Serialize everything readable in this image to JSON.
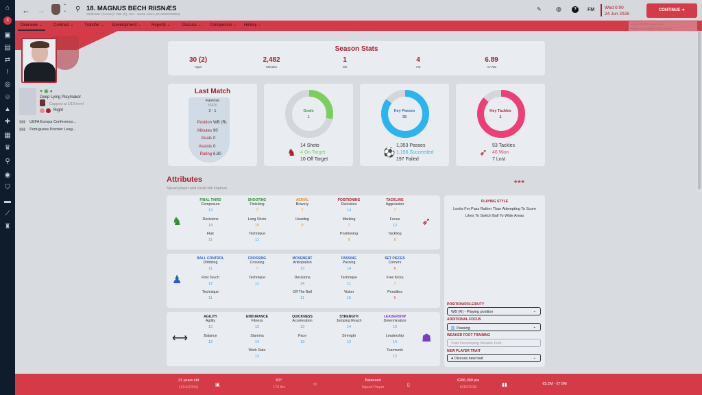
{
  "header": {
    "title": "18. MAGNUS BECH RIISNÆS",
    "subtitle": "Midfielder (Center) / WB (R), DM - Santa Clara (ID:2000029953)",
    "date_line1": "Wed 0:00",
    "date_line2": "24 Jun 2026",
    "continue_label": "CONTINUE",
    "fm_label": "FM",
    "inbox_count": "3",
    "advice_title": "NEW ADVICE AVAILABLE",
    "advice_text": "Player Progression Observations"
  },
  "nav": {
    "tabs": [
      "Overview",
      "Contract",
      "Transfer",
      "Development",
      "Reports",
      "Discuss",
      "Comparison",
      "History"
    ]
  },
  "profile": {
    "role": "Deep Lying Playmaker",
    "international": "Capped at U19 level",
    "foot": "Right",
    "competitions": [
      "UEFA Europa Conference...",
      "Portuguese Premier Leag..."
    ]
  },
  "season_stats": {
    "title": "Season Stats",
    "items": [
      {
        "value": "30 (2)",
        "label": "Apps"
      },
      {
        "value": "2,482",
        "label": "Minutes"
      },
      {
        "value": "1",
        "label": "Gls"
      },
      {
        "value": "4",
        "label": "Ast"
      },
      {
        "value": "6.89",
        "label": "Av Rat"
      }
    ]
  },
  "last_match": {
    "title": "Last Match",
    "opponent": "Farense",
    "date": "5/9/26",
    "score": "2 - 1",
    "rows": [
      {
        "k": "Position",
        "v": "WB (R)"
      },
      {
        "k": "Minutes",
        "v": "90"
      },
      {
        "k": "Goals",
        "v": "0"
      },
      {
        "k": "Assists",
        "v": "0"
      },
      {
        "k": "Rating",
        "v": "6.80"
      }
    ]
  },
  "donuts": [
    {
      "label": "Goals",
      "value": "1",
      "fraction": 0.286,
      "color": "#7ccf5e",
      "text_color": "#3a9a3a",
      "lines": [
        {
          "n": "14",
          "t": "Shots"
        },
        {
          "n": "4",
          "t": "On Target"
        },
        {
          "n": "10",
          "t": "Off Target"
        }
      ]
    },
    {
      "label": "Key Passes",
      "value": "36",
      "fraction": 0.854,
      "color": "#2bb5f0",
      "text_color": "#2a6acc",
      "lines": [
        {
          "n": "1,353",
          "t": "Passes"
        },
        {
          "n": "1,156",
          "t": "Succeeded"
        },
        {
          "n": "197",
          "t": "Failed"
        }
      ]
    },
    {
      "label": "Key Tackles",
      "value": "1",
      "fraction": 0.868,
      "color": "#ec3f78",
      "text_color": "#b0202e",
      "lines": [
        {
          "n": "53",
          "t": "Tackles"
        },
        {
          "n": "46",
          "t": "Won"
        },
        {
          "n": "7",
          "t": "Lost"
        }
      ]
    }
  ],
  "attributes": {
    "title": "Attributes",
    "subtitle": "Squad player and could still improve.",
    "stars": 3,
    "panels": [
      {
        "groups": [
          {
            "title": "FINAL THIRD",
            "color": "#2e8a2e",
            "items": [
              [
                "Composure",
                "13"
              ],
              [
                "Decisions",
                "14"
              ],
              [
                "Flair",
                "11"
              ]
            ]
          },
          {
            "title": "SHOOTING",
            "color": "#2e8a2e",
            "items": [
              [
                "Finishing",
                "7"
              ],
              [
                "Long Shots",
                "10"
              ],
              [
                "Technique",
                "11"
              ]
            ]
          },
          {
            "title": "AERIAL",
            "color": "#f08a24",
            "items": [
              [
                "Bravery",
                "7"
              ],
              [
                "Heading",
                "9"
              ]
            ]
          },
          {
            "title": "POSITIONING",
            "color": "#a51c2a",
            "items": [
              [
                "Decisions",
                "14"
              ],
              [
                "Marking",
                "7"
              ],
              [
                "Positioning",
                "9"
              ]
            ]
          },
          {
            "title": "TACKLING",
            "color": "#a51c2a",
            "items": [
              [
                "Aggression",
                "7"
              ],
              [
                "Focus",
                "12"
              ],
              [
                "Tackling",
                "8"
              ]
            ]
          }
        ]
      },
      {
        "groups": [
          {
            "title": "BALL CONTROL",
            "color": "#2a5cc4",
            "items": [
              [
                "Dribbling",
                "11"
              ],
              [
                "First Touch",
                "12"
              ],
              [
                "Technique",
                "11"
              ]
            ]
          },
          {
            "title": "CROSSING",
            "color": "#2a5cc4",
            "items": [
              [
                "Crossing",
                "7"
              ],
              [
                "Technique",
                "11"
              ]
            ]
          },
          {
            "title": "MOVEMENT",
            "color": "#2a5cc4",
            "items": [
              [
                "Anticipation",
                "13"
              ],
              [
                "Decisions",
                "14"
              ],
              [
                "Off The Ball",
                "11"
              ]
            ]
          },
          {
            "title": "PASSING",
            "color": "#2a5cc4",
            "items": [
              [
                "Passing",
                "14"
              ],
              [
                "Technique",
                "11"
              ],
              [
                "Vision",
                "15"
              ]
            ]
          },
          {
            "title": "SET PIECES",
            "color": "#2a5cc4",
            "items": [
              [
                "Corners",
                "6"
              ],
              [
                "Free Kicks",
                "7"
              ],
              [
                "Penalties",
                "5"
              ]
            ]
          }
        ]
      },
      {
        "groups": [
          {
            "title": "AGILITY",
            "color": "#1a1f2a",
            "items": [
              [
                "Agility",
                "13"
              ],
              [
                "Balance",
                "12"
              ]
            ]
          },
          {
            "title": "ENDURANCE",
            "color": "#1a1f2a",
            "items": [
              [
                "Fitness",
                "12"
              ],
              [
                "Stamina",
                "14"
              ],
              [
                "Work Rate",
                "13"
              ]
            ]
          },
          {
            "title": "QUICKNESS",
            "color": "#1a1f2a",
            "items": [
              [
                "Acceleration",
                "13"
              ],
              [
                "Pace",
                "13"
              ]
            ]
          },
          {
            "title": "STRENGTH",
            "color": "#1a1f2a",
            "items": [
              [
                "Jumping Reach",
                "14"
              ],
              [
                "Strength",
                "12"
              ]
            ]
          },
          {
            "title": "LEADERSHIP",
            "color": "#7a3cc8",
            "items": [
              [
                "Determination",
                "13"
              ],
              [
                "Leadership",
                "14"
              ],
              [
                "Teamwork",
                "12"
              ]
            ]
          }
        ]
      }
    ]
  },
  "side_panel": {
    "playing_style_title": "PLAYING STYLE",
    "styles": [
      "Looks For Pass Rather Than Attempting To Score",
      "Likes To Switch Ball To Wide Areas"
    ],
    "position_label": "POSITION/ROLE/DUTY",
    "position_value": "WB (R) - Playing position",
    "focus_label": "ADDITIONAL FOCUS",
    "focus_value": "Passing",
    "weak_label": "WEAKER FOOT TRAINING",
    "weak_value": "Start Developing Weaker Foot",
    "trait_label": "NEW PLAYER TRAIT",
    "trait_value": "Discuss new trait"
  },
  "footer": {
    "age": "21 years old",
    "dob": "(11/4/2004)",
    "height": "6'0\"",
    "weight": "176 lbs",
    "personality": "Balanced",
    "status": "Squad Player",
    "wage": "€286,000 p/a",
    "contract_end": "6/30/2028",
    "value": "€5.2M - €7.6M"
  }
}
